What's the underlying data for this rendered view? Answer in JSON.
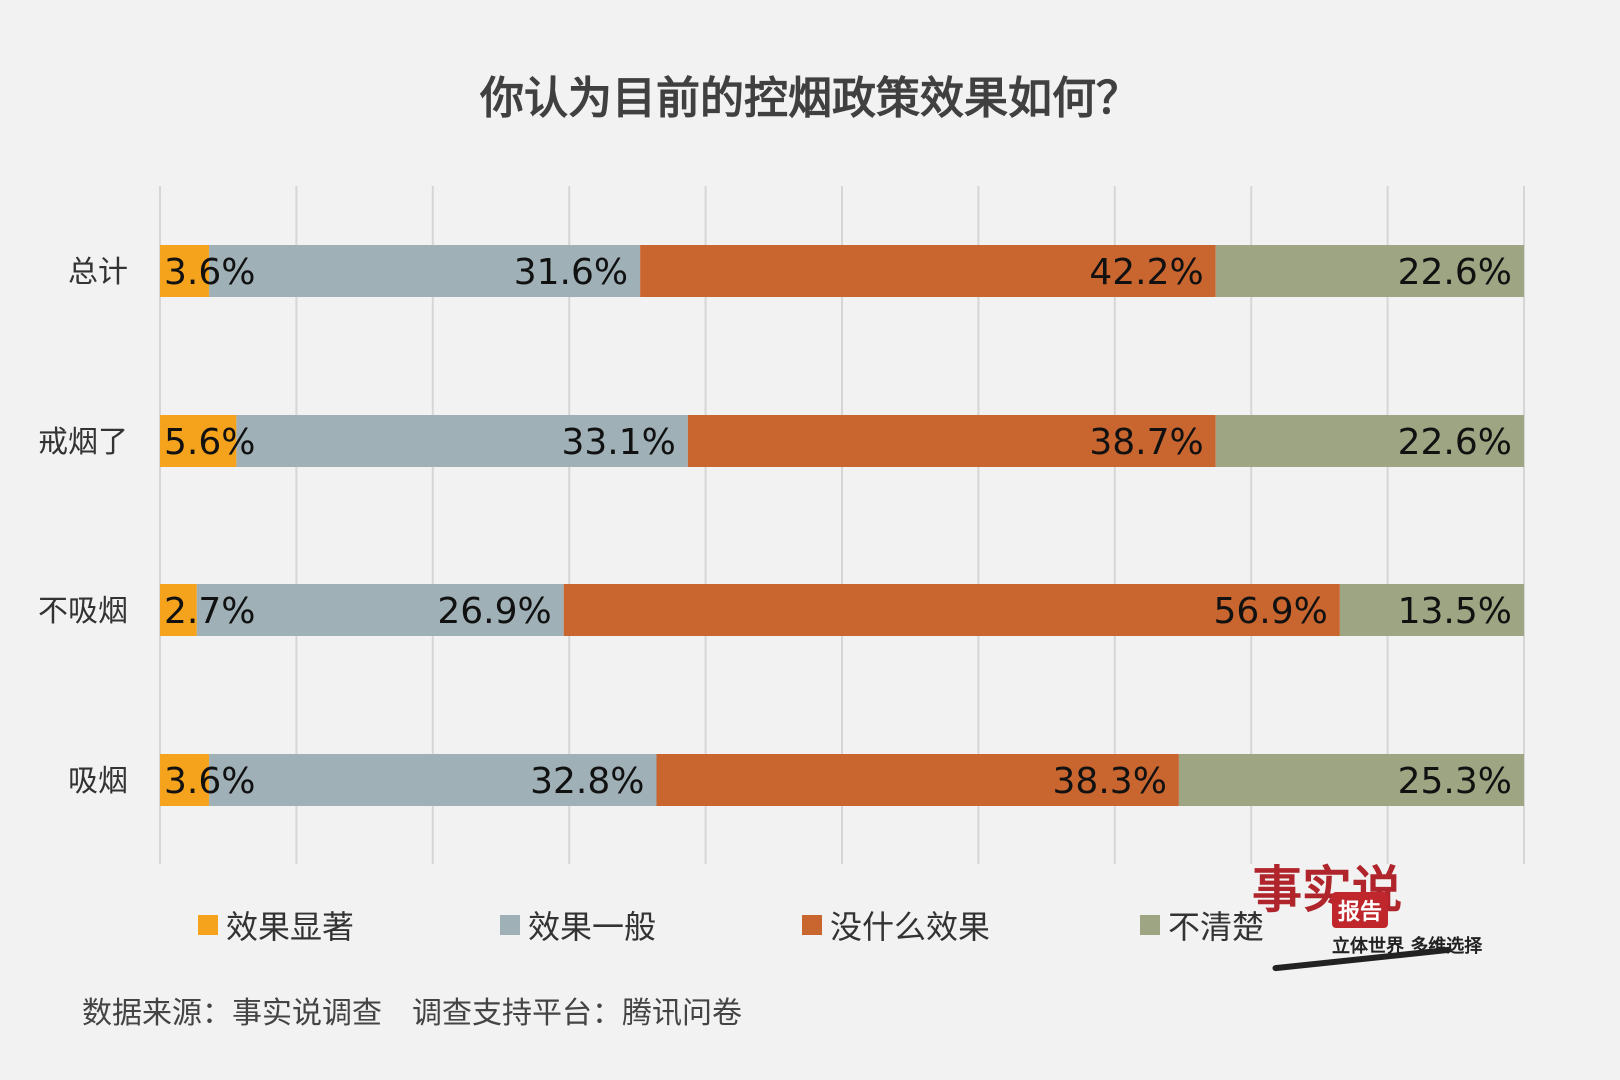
{
  "chart_data": {
    "type": "bar",
    "orientation": "horizontal",
    "stacked": true,
    "title": "你认为目前的控烟政策效果如何？",
    "categories": [
      "总计",
      "戒烟了",
      "不吸烟",
      "吸烟"
    ],
    "series": [
      {
        "name": "效果显著",
        "color": "#f5a21c",
        "values": [
          3.6,
          5.6,
          2.7,
          3.6
        ],
        "labels": [
          "3.6%",
          "5.6%",
          "2.7%",
          "3.6%"
        ]
      },
      {
        "name": "效果一般",
        "color": "#9fb0b6",
        "values": [
          31.6,
          33.1,
          26.9,
          32.8
        ],
        "labels": [
          "31.6%",
          "33.1%",
          "26.9%",
          "32.8%"
        ]
      },
      {
        "name": "没什么效果",
        "color": "#c96630",
        "values": [
          42.2,
          38.7,
          56.9,
          38.3
        ],
        "labels": [
          "42.2%",
          "38.7%",
          "56.9%",
          "38.3%"
        ]
      },
      {
        "name": "不清楚",
        "color": "#9ea583",
        "values": [
          22.6,
          22.6,
          13.5,
          25.3
        ],
        "labels": [
          "22.6%",
          "22.6%",
          "13.5%",
          "25.3%"
        ]
      }
    ],
    "xlim": [
      0,
      100
    ],
    "grid": true,
    "legend_position": "bottom"
  },
  "source": "数据来源：事实说调查　调查支持平台：腾讯问卷",
  "logo": {
    "chars": "事实说",
    "badge": "报告",
    "slogan": "立体世界 多维选择"
  }
}
